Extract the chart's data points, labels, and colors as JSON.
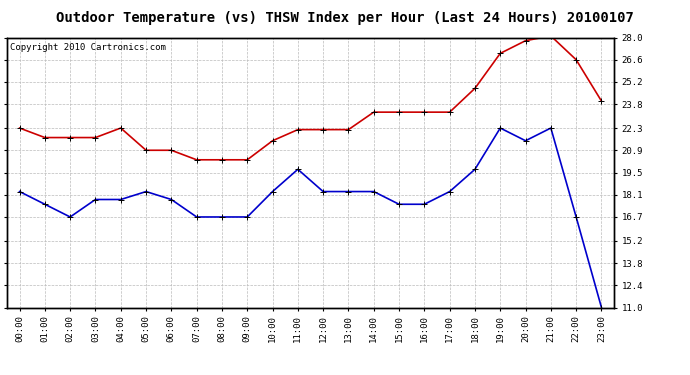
{
  "title": "Outdoor Temperature (vs) THSW Index per Hour (Last 24 Hours) 20100107",
  "copyright_text": "Copyright 2010 Cartronics.com",
  "hours": [
    "00:00",
    "01:00",
    "02:00",
    "03:00",
    "04:00",
    "05:00",
    "06:00",
    "07:00",
    "08:00",
    "09:00",
    "10:00",
    "11:00",
    "12:00",
    "13:00",
    "14:00",
    "15:00",
    "16:00",
    "17:00",
    "18:00",
    "19:00",
    "20:00",
    "21:00",
    "22:00",
    "23:00"
  ],
  "red_data": [
    22.3,
    21.7,
    21.7,
    21.7,
    22.3,
    20.9,
    20.9,
    20.3,
    20.3,
    20.3,
    21.5,
    22.2,
    22.2,
    22.2,
    23.3,
    23.3,
    23.3,
    23.3,
    24.8,
    27.0,
    27.8,
    28.1,
    26.6,
    24.0
  ],
  "blue_data": [
    18.3,
    17.5,
    16.7,
    17.8,
    17.8,
    18.3,
    17.8,
    16.7,
    16.7,
    16.7,
    18.3,
    19.7,
    18.3,
    18.3,
    18.3,
    17.5,
    17.5,
    18.3,
    19.7,
    22.3,
    21.5,
    22.3,
    16.7,
    11.0
  ],
  "red_color": "#cc0000",
  "blue_color": "#0000cc",
  "background_color": "#ffffff",
  "grid_color": "#bbbbbb",
  "ylim": [
    11.0,
    28.0
  ],
  "yticks": [
    11.0,
    12.4,
    13.8,
    15.2,
    16.7,
    18.1,
    19.5,
    20.9,
    22.3,
    23.8,
    25.2,
    26.6,
    28.0
  ],
  "title_fontsize": 10,
  "copyright_fontsize": 6.5,
  "tick_fontsize": 6.5,
  "marker": "+",
  "marker_size": 4,
  "line_width": 1.2
}
